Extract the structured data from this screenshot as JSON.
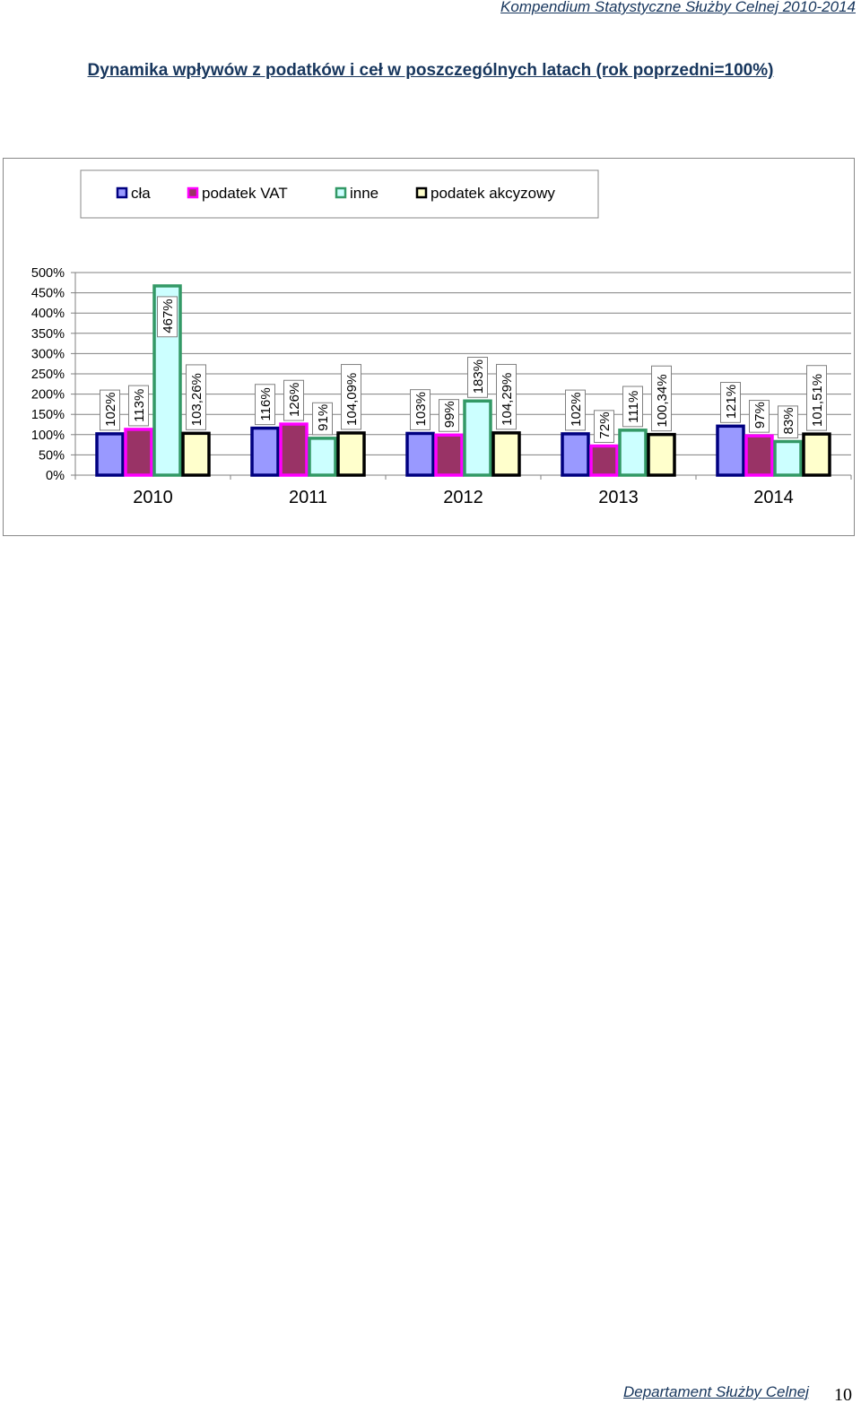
{
  "header": {
    "publication": "Kompendium Statystyczne Służby Celnej 2010-2014",
    "title": "Dynamika wpływów z podatków i ceł w poszczególnych latach (rok poprzedni=100%)"
  },
  "chart_data": {
    "type": "bar",
    "categories": [
      "2010",
      "2011",
      "2012",
      "2013",
      "2014"
    ],
    "ylim": [
      0,
      500
    ],
    "yticks": [
      "0%",
      "50%",
      "100%",
      "150%",
      "200%",
      "250%",
      "300%",
      "350%",
      "400%",
      "450%",
      "500%"
    ],
    "grid": true,
    "legend_position": "top",
    "series": [
      {
        "name": "cła",
        "values": [
          102,
          116,
          103,
          102,
          121
        ],
        "labels": [
          "102%",
          "116%",
          "103%",
          "102%",
          "121%"
        ],
        "fill": "#9999ff",
        "stroke": "#000080"
      },
      {
        "name": "podatek VAT",
        "values": [
          113,
          126,
          99,
          72,
          97
        ],
        "labels": [
          "113%",
          "126%",
          "99%",
          "72%",
          "97%"
        ],
        "fill": "#993366",
        "stroke": "#ff00ff"
      },
      {
        "name": "inne",
        "values": [
          467,
          91,
          183,
          111,
          83
        ],
        "labels": [
          "467%",
          "91%",
          "183%",
          "111%",
          "83%"
        ],
        "fill": "#ccffff",
        "stroke": "#339966"
      },
      {
        "name": "podatek akcyzowy",
        "values": [
          103.26,
          104.09,
          104.29,
          100.34,
          101.51
        ],
        "labels": [
          "103,26%",
          "104,09%",
          "104,29%",
          "100,34%",
          "101,51%"
        ],
        "fill": "#ffffcc",
        "stroke": "#000000"
      }
    ]
  },
  "footer": {
    "department": "Departament Służby Celnej",
    "page": "10"
  }
}
